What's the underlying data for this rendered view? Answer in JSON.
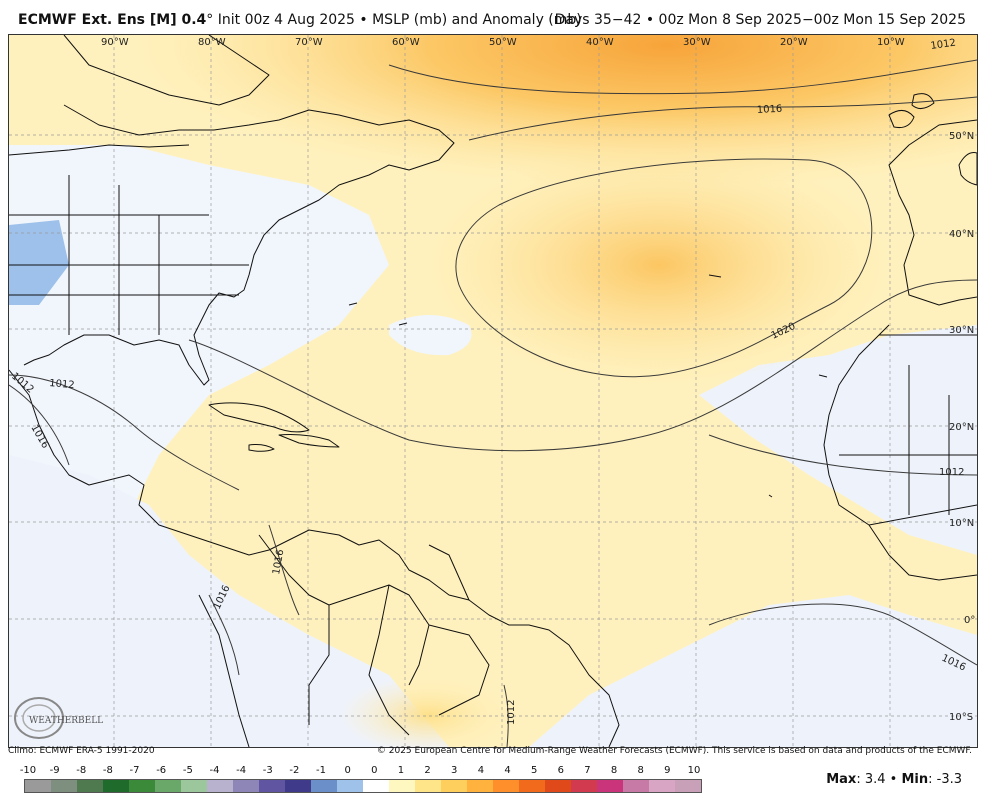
{
  "header": {
    "model": "ECMWF Ext. Ens [M] 0.4",
    "deg": "°",
    "init": " Init 00z 4 Aug 2025 • MSLP (mb) and Anomaly (mb)",
    "valid": "Days 35−42 • 00z Mon 8 Sep 2025−00z Mon 15 Sep 2025"
  },
  "map": {
    "lon_labels": [
      "90°W",
      "80°W",
      "70°W",
      "60°W",
      "50°W",
      "40°W",
      "30°W",
      "20°W",
      "10°W"
    ],
    "lat_labels": [
      "50°N",
      "40°N",
      "30°N",
      "20°N",
      "10°N",
      "0°",
      "10°S"
    ],
    "isobars": [
      {
        "label": "1012",
        "value": 1012
      },
      {
        "label": "1016",
        "value": 1016
      },
      {
        "label": "1020",
        "value": 1020
      },
      {
        "label": "1012",
        "value": 1012
      },
      {
        "label": "1012",
        "value": 1012
      },
      {
        "label": "1016",
        "value": 1016
      },
      {
        "label": "1016",
        "value": 1016
      },
      {
        "label": "1012",
        "value": 1012
      },
      {
        "label": "1016",
        "value": 1016
      },
      {
        "label": "1012",
        "value": 1012
      },
      {
        "label": "1016",
        "value": 1016
      }
    ],
    "logo": "WEATHERBELL"
  },
  "footer": {
    "climo": "Climo: ECMWF ERA-5 1991-2020",
    "copyright": "© 2025 European Centre for Medium-Range Weather Forecasts (ECMWF). This service is based on data and products of the ECMWF."
  },
  "legend": {
    "labels": [
      "-10",
      "-9",
      "-8",
      "-8",
      "-7",
      "-6",
      "-5",
      "-4",
      "-4",
      "-3",
      "-2",
      "-1",
      "0",
      "0",
      "1",
      "2",
      "3",
      "4",
      "4",
      "5",
      "6",
      "7",
      "8",
      "8",
      "9",
      "10"
    ],
    "colors": [
      "#9a9a9a",
      "#7f8f7f",
      "#4f7a4f",
      "#1e6b2c",
      "#3a8a3a",
      "#6aa86a",
      "#9cc69c",
      "#b9b2cf",
      "#8f86b8",
      "#5f55a0",
      "#3f3a8a",
      "#6b8fc8",
      "#9fc2ea",
      "#ffffff",
      "#fff7c0",
      "#ffe58a",
      "#ffcf5e",
      "#ffb23e",
      "#ff8f2a",
      "#f26a1c",
      "#e04a1a",
      "#d23a50",
      "#c9347a",
      "#c77aa6",
      "#d8a6c4",
      "#c8a0b8"
    ]
  },
  "stats": {
    "max_label": "Max",
    "max_value": ": 3.4",
    "sep": " • ",
    "min_label": "Min",
    "min_value": ": -3.3"
  }
}
